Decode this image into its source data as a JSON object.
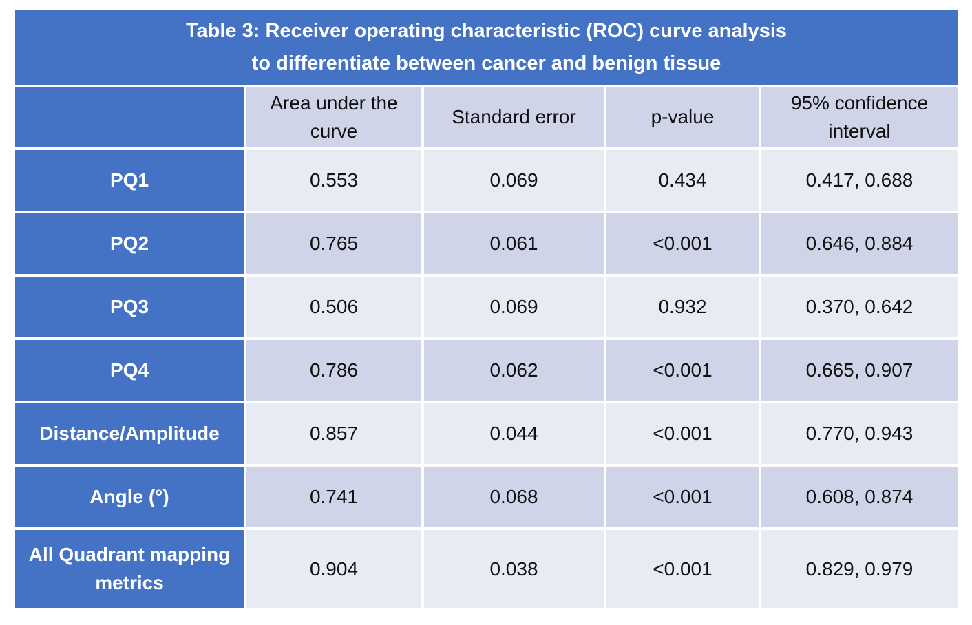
{
  "title": {
    "line1": "Table 3: Receiver operating characteristic (ROC) curve analysis",
    "line2": "to differentiate between cancer and benign tissue"
  },
  "columns": {
    "auc": "Area under the curve",
    "se": "Standard error",
    "p": "p-value",
    "ci": "95% confidence interval"
  },
  "rows": [
    {
      "label": "PQ1",
      "auc": "0.553",
      "se": "0.069",
      "p": "0.434",
      "ci": "0.417, 0.688"
    },
    {
      "label": "PQ2",
      "auc": "0.765",
      "se": "0.061",
      "p": "<0.001",
      "ci": "0.646, 0.884"
    },
    {
      "label": "PQ3",
      "auc": "0.506",
      "se": "0.069",
      "p": "0.932",
      "ci": "0.370, 0.642"
    },
    {
      "label": "PQ4",
      "auc": "0.786",
      "se": "0.062",
      "p": "<0.001",
      "ci": "0.665, 0.907"
    },
    {
      "label": "Distance/Amplitude",
      "auc": "0.857",
      "se": "0.044",
      "p": "<0.001",
      "ci": "0.770, 0.943"
    },
    {
      "label": "Angle (°)",
      "auc": "0.741",
      "se": "0.068",
      "p": "<0.001",
      "ci": "0.608, 0.874"
    },
    {
      "label": "All Quadrant mapping metrics",
      "auc": "0.904",
      "se": "0.038",
      "p": "<0.001",
      "ci": "0.829, 0.979"
    }
  ],
  "colors": {
    "header_blue": "#4472c4",
    "band_dark": "#cfd4e8",
    "band_light": "#e9ebf4",
    "grid_white": "#ffffff",
    "title_text": "#ffffff",
    "body_text": "#111111"
  },
  "chart_data": {
    "type": "table",
    "title": "Table 3: Receiver operating characteristic (ROC) curve analysis to differentiate between cancer and benign tissue",
    "columns": [
      "",
      "Area under the curve",
      "Standard error",
      "p-value",
      "95% confidence interval"
    ],
    "rows": [
      [
        "PQ1",
        0.553,
        0.069,
        "0.434",
        "0.417, 0.688"
      ],
      [
        "PQ2",
        0.765,
        0.061,
        "<0.001",
        "0.646, 0.884"
      ],
      [
        "PQ3",
        0.506,
        0.069,
        "0.932",
        "0.370, 0.642"
      ],
      [
        "PQ4",
        0.786,
        0.062,
        "<0.001",
        "0.665, 0.907"
      ],
      [
        "Distance/Amplitude",
        0.857,
        0.044,
        "<0.001",
        "0.770, 0.943"
      ],
      [
        "Angle (°)",
        0.741,
        0.068,
        "<0.001",
        "0.608, 0.874"
      ],
      [
        "All Quadrant mapping metrics",
        0.904,
        0.038,
        "<0.001",
        "0.829, 0.979"
      ]
    ]
  }
}
